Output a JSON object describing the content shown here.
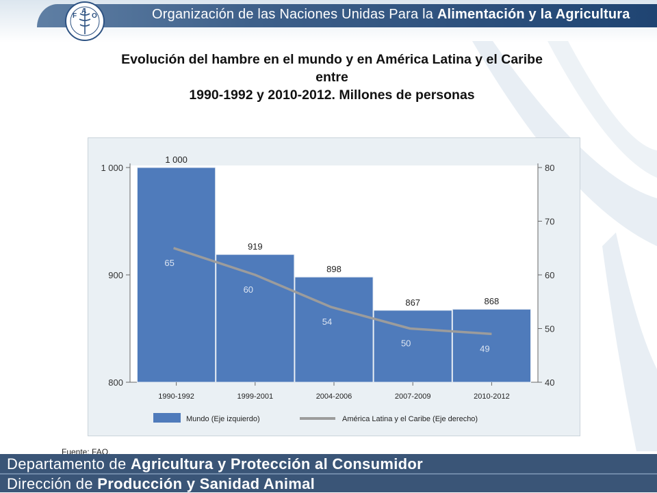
{
  "header": {
    "org_name_prefix": "Organización de las Naciones Unidas Para la ",
    "org_name_bold": "Alimentación y la Agricultura",
    "logo_text": "FAO",
    "logo_motto": "FIAT PANIS"
  },
  "title_lines": [
    "Evolución del hambre en el mundo y en América Latina y el Caribe",
    "entre",
    "1990-1992 y 2010-2012. Millones de personas"
  ],
  "chart_data": {
    "type": "bar",
    "categories": [
      "1990-1992",
      "1999-2001",
      "2004-2006",
      "2007-2009",
      "2010-2012"
    ],
    "series": [
      {
        "name": "Mundo (Eje izquierdo)",
        "type": "bar",
        "axis": "left",
        "values": [
          1000,
          919,
          898,
          867,
          868
        ],
        "labels": [
          "1 000",
          "919",
          "898",
          "867",
          "868"
        ],
        "color": "#4f7bbb"
      },
      {
        "name": "América Latina y el Caribe (Eje derecho)",
        "type": "line",
        "axis": "right",
        "values": [
          65,
          60,
          54,
          50,
          49
        ],
        "labels": [
          "65",
          "60",
          "54",
          "50",
          "49"
        ],
        "color": "#9c9c9c"
      }
    ],
    "ylim_left": [
      800,
      1000
    ],
    "yticks_left": [
      800,
      900,
      1000
    ],
    "ytick_labels_left": [
      "800",
      "900",
      "1 000"
    ],
    "ylim_right": [
      40,
      80
    ],
    "yticks_right": [
      40,
      50,
      60,
      70,
      80
    ],
    "ytick_labels_right": [
      "40",
      "50",
      "60",
      "70",
      "80"
    ],
    "legend_placement": "bottom",
    "grid": false,
    "plot_background": "#eaf0f4"
  },
  "source": "Fuente: FAO.",
  "footer": {
    "line1_prefix": "Departamento de ",
    "line1_bold": "Agricultura y Protección al Consumidor",
    "line2_prefix": "Dirección de ",
    "line2_bold": "Producción y Sanidad Animal"
  },
  "colors": {
    "header_band": "#2d5282",
    "footer_band": "#3a5577",
    "bar": "#4f7bbb",
    "line": "#9c9c9c"
  }
}
